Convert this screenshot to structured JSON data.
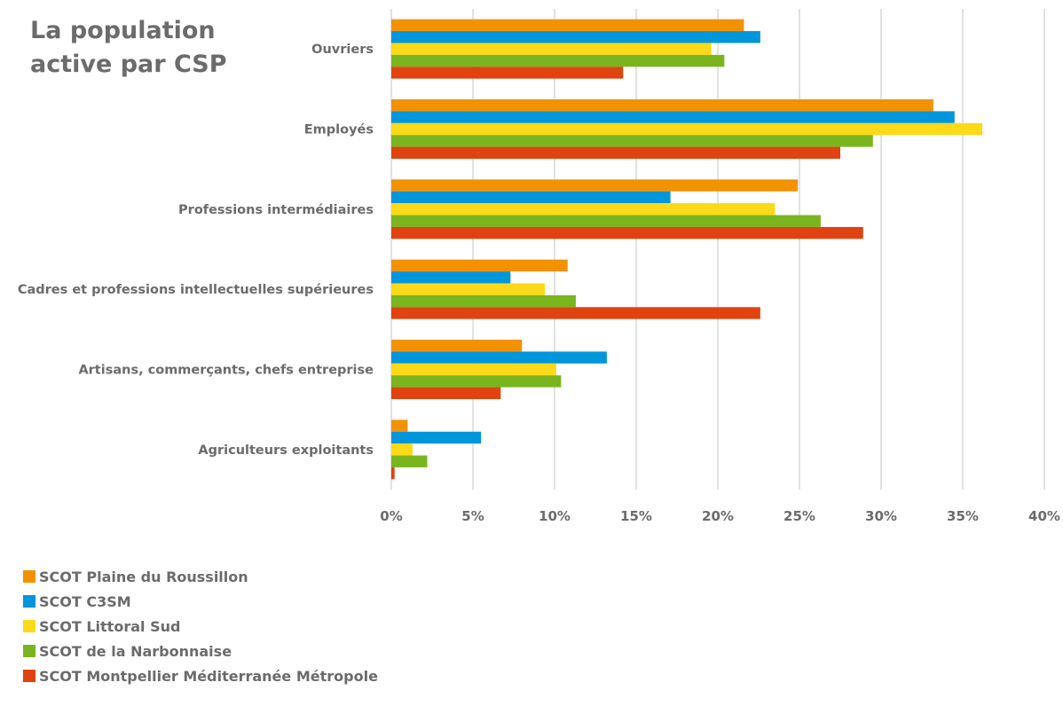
{
  "chart_data": {
    "type": "bar",
    "orientation": "horizontal",
    "title": "La population\nactive par CSP",
    "categories": [
      "Ouvriers",
      "Employés",
      "Professions intermédiaires",
      "Cadres et professions intellectuelles supérieures",
      "Artisans, commerçants, chefs entreprise",
      "Agriculteurs exploitants"
    ],
    "series": [
      {
        "name": "SCOT Plaine du Roussillon",
        "color": "#F39200",
        "values": [
          21.6,
          33.2,
          24.9,
          10.8,
          8.0,
          1.0
        ]
      },
      {
        "name": "SCOT C3SM",
        "color": "#0096DC",
        "values": [
          22.6,
          34.5,
          17.1,
          7.3,
          13.2,
          5.5
        ]
      },
      {
        "name": "SCOT Littoral Sud",
        "color": "#FCD919",
        "values": [
          19.6,
          36.2,
          23.5,
          9.4,
          10.1,
          1.3
        ]
      },
      {
        "name": "SCOT de la Narbonnaise",
        "color": "#7AB51D",
        "values": [
          20.4,
          29.5,
          26.3,
          11.3,
          10.4,
          2.2
        ]
      },
      {
        "name": "SCOT Montpellier Méditerranée Métropole",
        "color": "#E0430F",
        "values": [
          14.2,
          27.5,
          28.9,
          22.6,
          6.7,
          0.2
        ]
      }
    ],
    "xlim": [
      0,
      40
    ],
    "xticks": [
      "0%",
      "5%",
      "10%",
      "15%",
      "20%",
      "25%",
      "30%",
      "35%",
      "40%"
    ],
    "xtick_values": [
      0,
      5,
      10,
      15,
      20,
      25,
      30,
      35,
      40
    ],
    "grid": true,
    "legend_position": "bottom-left",
    "xlabel": "",
    "ylabel": ""
  }
}
